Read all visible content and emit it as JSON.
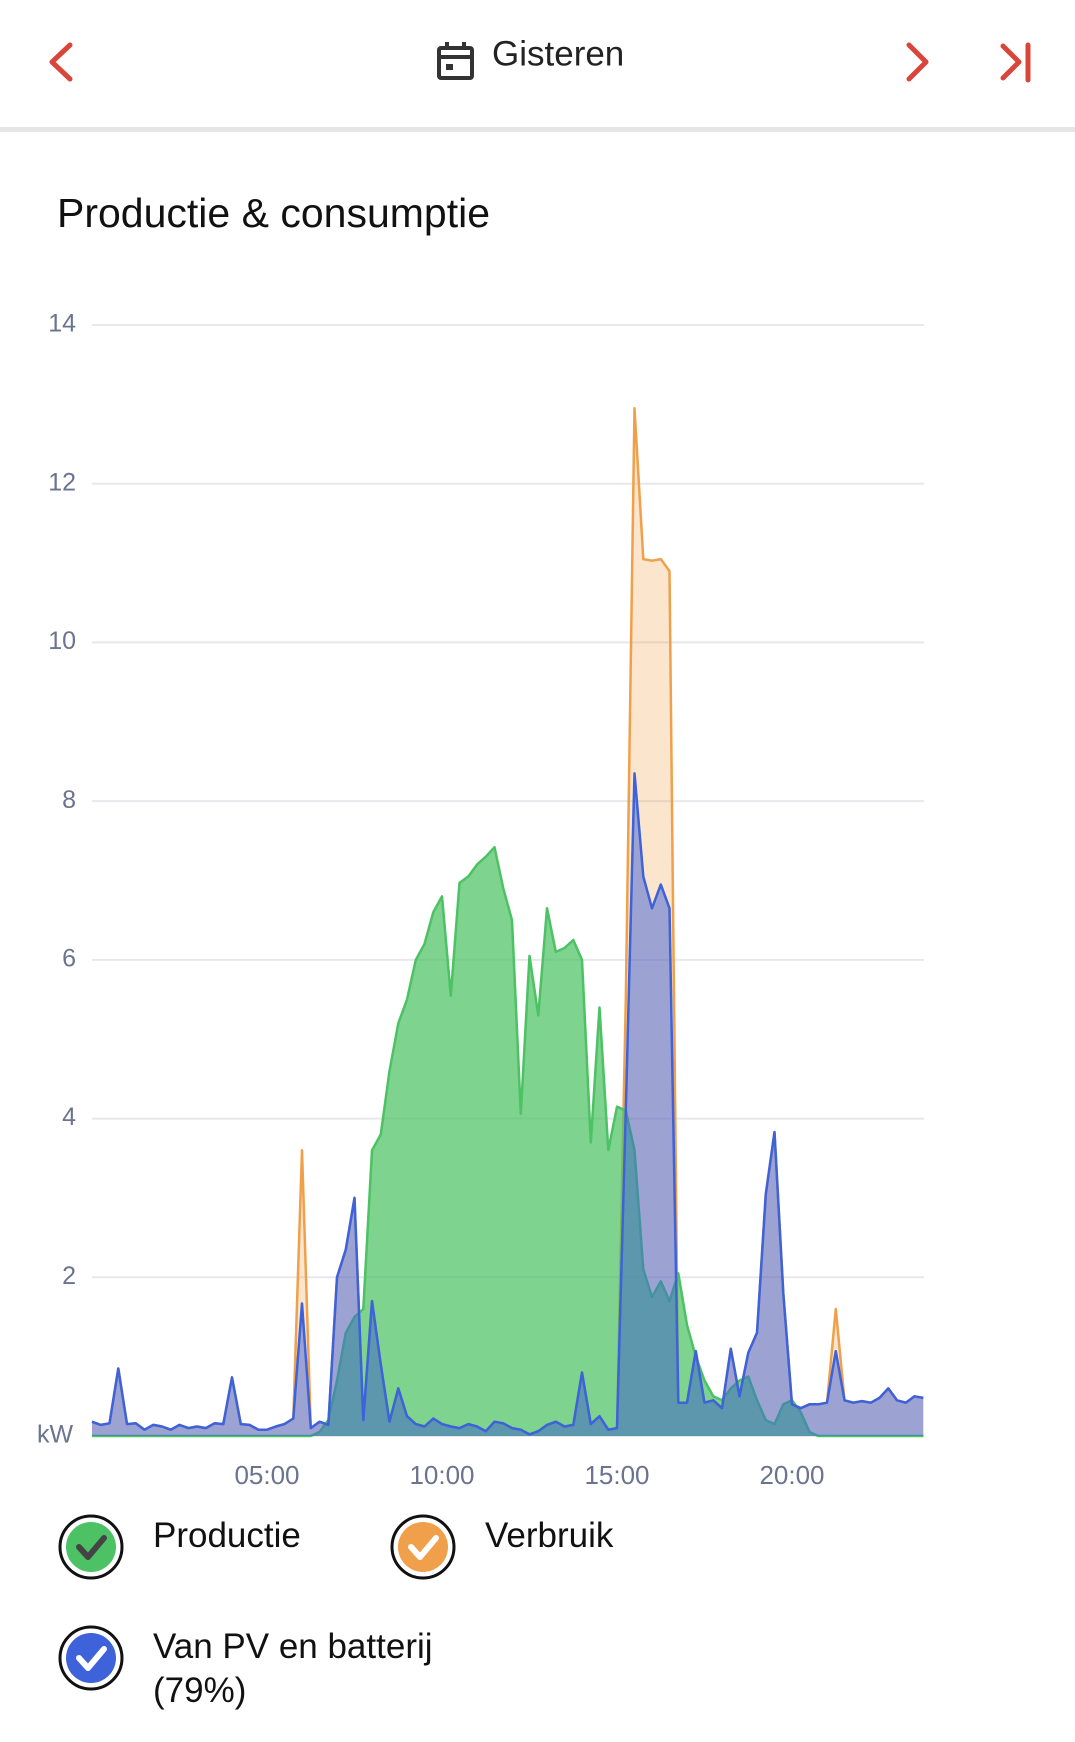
{
  "header": {
    "title": "Gisteren"
  },
  "chart_data": {
    "type": "area",
    "title": "Productie & consumptie",
    "x": [
      0,
      0.25,
      0.5,
      0.75,
      1,
      1.25,
      1.5,
      1.75,
      2,
      2.25,
      2.5,
      2.75,
      3,
      3.25,
      3.5,
      3.75,
      4,
      4.25,
      4.5,
      4.75,
      5,
      5.25,
      5.5,
      5.75,
      6,
      6.25,
      6.5,
      6.75,
      7,
      7.25,
      7.5,
      7.75,
      8,
      8.25,
      8.5,
      8.75,
      9,
      9.25,
      9.5,
      9.75,
      10,
      10.25,
      10.5,
      10.75,
      11,
      11.25,
      11.5,
      11.75,
      12,
      12.25,
      12.5,
      12.75,
      13,
      13.25,
      13.5,
      13.75,
      14,
      14.25,
      14.5,
      14.75,
      15,
      15.25,
      15.5,
      15.75,
      16,
      16.25,
      16.5,
      16.75,
      17,
      17.25,
      17.5,
      17.75,
      18,
      18.25,
      18.5,
      18.75,
      19,
      19.25,
      19.5,
      19.75,
      20,
      20.25,
      20.5,
      20.75,
      21,
      21.25,
      21.5,
      21.75,
      22,
      22.25,
      22.5,
      22.75,
      23,
      23.25,
      23.5,
      23.75
    ],
    "series": [
      {
        "name": "Verbruik",
        "color": "#f0a04b",
        "values": [
          0.18,
          0.14,
          0.16,
          0.85,
          0.15,
          0.16,
          0.08,
          0.14,
          0.12,
          0.08,
          0.14,
          0.1,
          0.12,
          0.1,
          0.16,
          0.15,
          0.74,
          0.15,
          0.14,
          0.08,
          0.08,
          0.12,
          0.15,
          0.22,
          3.6,
          0.1,
          0.18,
          0.14,
          2.0,
          2.35,
          3.0,
          0.2,
          1.7,
          0.9,
          0.18,
          0.6,
          0.25,
          0.15,
          0.12,
          0.22,
          0.15,
          0.12,
          0.1,
          0.15,
          0.12,
          0.06,
          0.18,
          0.16,
          0.1,
          0.08,
          0.02,
          0.06,
          0.14,
          0.18,
          0.12,
          0.14,
          0.8,
          0.15,
          0.25,
          0.08,
          0.1,
          5.5,
          12.95,
          11.05,
          11.03,
          11.05,
          10.9,
          0.42,
          0.42,
          1.07,
          0.42,
          0.45,
          0.35,
          1.1,
          0.5,
          1.05,
          1.3,
          3.05,
          3.83,
          1.8,
          0.4,
          0.35,
          0.4,
          0.4,
          0.42,
          1.6,
          0.45,
          0.42,
          0.44,
          0.42,
          0.48,
          0.6,
          0.45,
          0.42,
          0.5,
          0.48
        ]
      },
      {
        "name": "Productie",
        "color": "#4cc264",
        "values": [
          0,
          0,
          0,
          0,
          0,
          0,
          0,
          0,
          0,
          0,
          0,
          0,
          0,
          0,
          0,
          0,
          0,
          0,
          0,
          0,
          0,
          0,
          0,
          0,
          0,
          0,
          0.05,
          0.2,
          0.7,
          1.3,
          1.5,
          1.6,
          3.6,
          3.8,
          4.6,
          5.2,
          5.5,
          6.0,
          6.2,
          6.6,
          6.8,
          5.55,
          6.97,
          7.05,
          7.2,
          7.3,
          7.42,
          6.9,
          6.5,
          4.06,
          6.05,
          5.3,
          6.65,
          6.1,
          6.15,
          6.25,
          6.0,
          3.7,
          5.4,
          3.6,
          4.15,
          4.1,
          3.6,
          2.1,
          1.75,
          1.95,
          1.7,
          2.05,
          1.4,
          1.0,
          0.7,
          0.5,
          0.45,
          0.6,
          0.7,
          0.75,
          0.45,
          0.2,
          0.15,
          0.4,
          0.45,
          0.3,
          0.05,
          0,
          0,
          0,
          0,
          0,
          0,
          0,
          0,
          0,
          0,
          0,
          0,
          0
        ]
      },
      {
        "name": "Van PV en batterij (79%)",
        "color": "#3d62d9",
        "values": [
          0.18,
          0.14,
          0.16,
          0.85,
          0.15,
          0.16,
          0.08,
          0.14,
          0.12,
          0.08,
          0.14,
          0.1,
          0.12,
          0.1,
          0.16,
          0.15,
          0.74,
          0.15,
          0.14,
          0.08,
          0.08,
          0.12,
          0.15,
          0.22,
          1.67,
          0.1,
          0.18,
          0.14,
          2.0,
          2.35,
          3.0,
          0.2,
          1.7,
          0.9,
          0.18,
          0.6,
          0.25,
          0.15,
          0.12,
          0.22,
          0.15,
          0.12,
          0.1,
          0.15,
          0.12,
          0.06,
          0.18,
          0.16,
          0.1,
          0.08,
          0.02,
          0.06,
          0.14,
          0.18,
          0.12,
          0.14,
          0.8,
          0.15,
          0.25,
          0.08,
          0.1,
          4.1,
          8.35,
          7.05,
          6.65,
          6.95,
          6.65,
          0.42,
          0.42,
          1.07,
          0.42,
          0.45,
          0.35,
          1.1,
          0.5,
          1.05,
          1.3,
          3.05,
          3.83,
          1.8,
          0.4,
          0.35,
          0.4,
          0.4,
          0.42,
          1.07,
          0.45,
          0.42,
          0.44,
          0.42,
          0.48,
          0.6,
          0.45,
          0.42,
          0.5,
          0.48
        ]
      }
    ],
    "xlim": [
      0,
      24
    ],
    "xticks": [
      {
        "value": 5,
        "label": "05:00"
      },
      {
        "value": 10,
        "label": "10:00"
      },
      {
        "value": 15,
        "label": "15:00"
      },
      {
        "value": 20,
        "label": "20:00"
      }
    ],
    "ylim": [
      0,
      14
    ],
    "yticks": [
      {
        "value": 0,
        "label": "kW"
      },
      2,
      4,
      6,
      8,
      10,
      12,
      14
    ],
    "grid": true
  }
}
